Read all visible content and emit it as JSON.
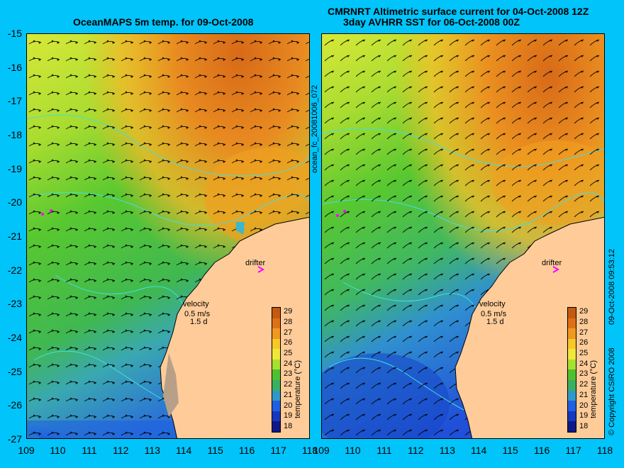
{
  "left_panel": {
    "title": "OceanMAPS 5m temp. for 09-Oct-2008",
    "velocity_label": "velocity",
    "scale_speed": "0.5 m/s",
    "scale_time": "1.5 d",
    "drifter_label": "drifter",
    "colorbar_title": "temperature (°C)"
  },
  "right_panel": {
    "title_line1": "CMRNRT Altimetric surface current for 04-Oct-2008 12Z",
    "title_line2": "3day AVHRR SST for 06-Oct-2008 00Z",
    "velocity_label": "velocity",
    "scale_speed": "0.5 m/s",
    "scale_time": "1.5 d",
    "drifter_label": "drifter",
    "colorbar_title": "temperature (°C)"
  },
  "side_text": {
    "run_id": "ocean_fc_20081006_072",
    "copyright": "© Copyright CSIRO 2008",
    "timestamp": "09-Oct-2008 09:53:12"
  },
  "axes": {
    "lat_ticks": [
      "-15",
      "-16",
      "-17",
      "-18",
      "-19",
      "-20",
      "-21",
      "-22",
      "-23",
      "-24",
      "-25",
      "-26",
      "-27"
    ],
    "lon_ticks": [
      "109",
      "110",
      "111",
      "112",
      "113",
      "114",
      "115",
      "116",
      "117",
      "118"
    ],
    "lat_range": [
      -27,
      -15
    ],
    "lon_range": [
      109,
      118
    ]
  },
  "colorbar": {
    "ticks": [
      "29",
      "28",
      "27",
      "26",
      "25",
      "24",
      "23",
      "22",
      "21",
      "20",
      "19",
      "18"
    ],
    "colors": [
      "#c45a10",
      "#e07018",
      "#f09820",
      "#f8c828",
      "#f0e838",
      "#a8e030",
      "#50c030",
      "#38b060",
      "#3098c8",
      "#2060e0",
      "#1838c0",
      "#101888"
    ]
  },
  "land_color": "#ffcc99",
  "drifter_color": "#ff00ff"
}
